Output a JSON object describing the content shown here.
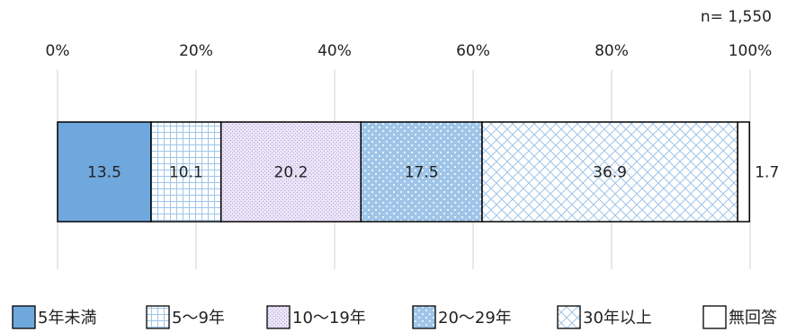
{
  "sample_note": "n= 1,550",
  "chart_data": {
    "type": "bar",
    "orientation": "horizontal",
    "stacked": true,
    "xlim": [
      0,
      100
    ],
    "x_tick_labels": [
      "0%",
      "20%",
      "40%",
      "60%",
      "80%",
      "100%"
    ],
    "grid": true,
    "legend_position": "bottom",
    "series": [
      {
        "name": "5年未満",
        "value": 13.5,
        "label": "13.5",
        "pattern": "solid"
      },
      {
        "name": "5～9年",
        "value": 10.1,
        "label": "10.1",
        "pattern": "grid"
      },
      {
        "name": "10～19年",
        "value": 20.2,
        "label": "20.2",
        "pattern": "fine"
      },
      {
        "name": "20～29年",
        "value": 17.5,
        "label": "17.5",
        "pattern": "dots"
      },
      {
        "name": "30年以上",
        "value": 36.9,
        "label": "36.9",
        "pattern": "cross"
      },
      {
        "name": "無回答",
        "value": 1.7,
        "label": "1.7",
        "pattern": "blank"
      }
    ]
  },
  "colors": {
    "solid_fill": "#6fa8dc",
    "blue": "#9fc5e8",
    "light_blue": "#cfe2f3",
    "purple_bg": "#eae4f8",
    "purple_line": "#b4a7d6",
    "outline": "#000000",
    "grid": "#d9d9d9",
    "text": "#222222"
  }
}
